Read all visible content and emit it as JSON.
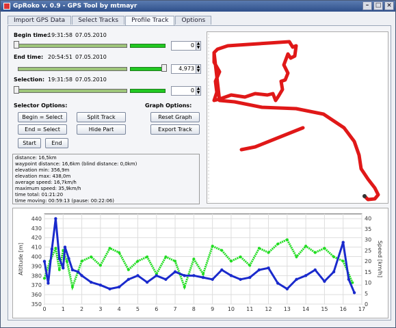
{
  "window": {
    "title": "GpRoko v. 0.9 - GPS Tool by mtmayr"
  },
  "tabs": [
    "Import GPS Data",
    "Select Tracks",
    "Profile Track",
    "Options"
  ],
  "begin": {
    "label": "Begin time:",
    "time": "19:31:58",
    "date": "07.05.2010",
    "value": "0"
  },
  "end": {
    "label": "End time:",
    "time": "20:54:51",
    "date": "07.05.2010",
    "value": "4,973"
  },
  "selection": {
    "label": "Selection:",
    "time": "19:31:58",
    "date": "07.05.2010",
    "value": "0"
  },
  "selector": {
    "heading": "Selector Options:",
    "begin_select": "Begin = Select",
    "end_select": "End = Select",
    "start": "Start",
    "end": "End",
    "split": "Split Track",
    "hide": "Hide Part"
  },
  "graph": {
    "heading": "Graph Options:",
    "reset": "Reset Graph",
    "export": "Export Track"
  },
  "info": [
    "distance: 16,5km",
    "waypoint distance: 16,6km (blind distance: 0,0km)",
    "elevation min: 356,9m",
    "elevation max: 438,0m",
    "average speed: 16,7km/h",
    "maximum speed: 35,9km/h",
    "time total: 01:21:20",
    "time moving: 00:59:13 (pause: 00:22:06)"
  ],
  "chart_data": {
    "type": "line",
    "xlabel": "",
    "ylabel": "Altitude [m]",
    "y2label": "Speed [km/h]",
    "xlim": [
      0,
      17
    ],
    "ylim": [
      350,
      445
    ],
    "y2lim": [
      0,
      42
    ],
    "xticks": [
      "0",
      "1",
      "2",
      "3",
      "4",
      "5",
      "6",
      "7",
      "8",
      "9",
      "10",
      "11",
      "12",
      "13",
      "14",
      "15",
      "16",
      "17"
    ],
    "yticks": [
      "350",
      "360",
      "370",
      "380",
      "390",
      "400",
      "410",
      "420",
      "430",
      "440"
    ],
    "y2ticks": [
      "0",
      "5",
      "10",
      "15",
      "20",
      "25",
      "30",
      "35",
      "40"
    ],
    "series": [
      {
        "color": "#1a2acc",
        "x": [
          0,
          0.2,
          0.4,
          0.6,
          0.8,
          1,
          1.1,
          1.3,
          1.5,
          1.8,
          2,
          2.5,
          3,
          3.5,
          4,
          4.5,
          5,
          5.5,
          6,
          6.5,
          7,
          7.5,
          8,
          8.5,
          9,
          9.5,
          10,
          10.5,
          11,
          11.5,
          12,
          12.5,
          13,
          13.5,
          14,
          14.5,
          15,
          15.5,
          16,
          16.3,
          16.6
        ],
        "values": [
          395,
          372,
          408,
          440,
          398,
          388,
          410,
          398,
          386,
          384,
          380,
          373,
          370,
          366,
          368,
          376,
          380,
          373,
          380,
          376,
          384,
          380,
          380,
          378,
          376,
          386,
          380,
          376,
          378,
          386,
          388,
          372,
          366,
          376,
          380,
          386,
          374,
          384,
          415,
          376,
          362
        ]
      },
      {
        "color": "#22dd22",
        "x": [
          0,
          0.3,
          0.6,
          0.8,
          1,
          1.2,
          1.5,
          2,
          2.5,
          3,
          3.5,
          4,
          4.5,
          5,
          5.5,
          6,
          6.5,
          7,
          7.5,
          8,
          8.5,
          9,
          9.5,
          10,
          10.5,
          11,
          11.5,
          12,
          12.5,
          13,
          13.5,
          14,
          14.5,
          15,
          15.5,
          16,
          16.5
        ],
        "values": [
          12,
          20,
          26,
          16,
          25,
          20,
          8,
          20,
          22,
          18,
          26,
          24,
          16,
          20,
          22,
          14,
          22,
          20,
          8,
          21,
          14,
          27,
          25,
          20,
          22,
          18,
          26,
          24,
          28,
          30,
          22,
          27,
          24,
          26,
          22,
          20,
          10
        ]
      }
    ]
  },
  "map_route": [
    [
      10,
      30
    ],
    [
      15,
      25
    ],
    [
      30,
      20
    ],
    [
      60,
      18
    ],
    [
      90,
      16
    ],
    [
      120,
      14
    ],
    [
      125,
      22
    ],
    [
      130,
      20
    ],
    [
      128,
      35
    ],
    [
      122,
      38
    ],
    [
      118,
      32
    ],
    [
      112,
      48
    ],
    [
      118,
      60
    ],
    [
      114,
      70
    ],
    [
      108,
      72
    ],
    [
      110,
      84
    ],
    [
      104,
      94
    ],
    [
      100,
      100
    ],
    [
      96,
      90
    ],
    [
      88,
      92
    ],
    [
      70,
      90
    ],
    [
      55,
      95
    ],
    [
      35,
      92
    ],
    [
      18,
      98
    ],
    [
      10,
      100
    ],
    [
      14,
      88
    ],
    [
      12,
      72
    ],
    [
      18,
      58
    ],
    [
      10,
      44
    ],
    [
      10,
      30
    ],
    [
      18,
      100
    ],
    [
      40,
      102
    ],
    [
      80,
      110
    ],
    [
      130,
      112
    ],
    [
      170,
      120
    ],
    [
      200,
      140
    ],
    [
      215,
      160
    ],
    [
      222,
      180
    ],
    [
      225,
      200
    ],
    [
      235,
      215
    ],
    [
      245,
      228
    ],
    [
      250,
      238
    ],
    [
      245,
      244
    ],
    [
      235,
      245
    ],
    [
      230,
      240
    ]
  ],
  "map_branch": [
    [
      140,
      140
    ],
    [
      120,
      148
    ],
    [
      95,
      158
    ],
    [
      70,
      168
    ],
    [
      50,
      172
    ]
  ]
}
